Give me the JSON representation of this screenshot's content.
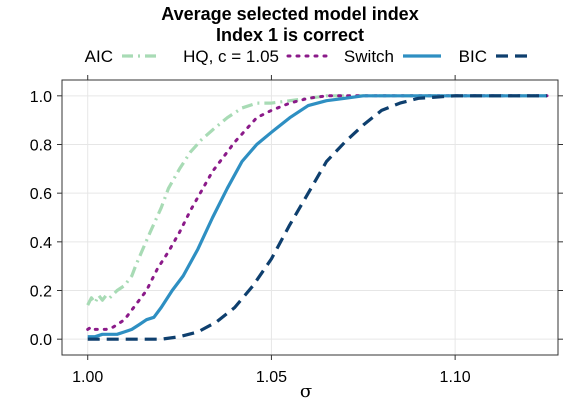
{
  "chart_data": {
    "type": "line",
    "title": "Average selected model index",
    "subtitle": "Index 1 is correct",
    "xlabel": "σ",
    "ylabel": "",
    "xlim": [
      0.993,
      1.128
    ],
    "ylim": [
      -0.065,
      1.065
    ],
    "xticks": [
      1.0,
      1.05,
      1.1
    ],
    "xtick_labels": [
      "1.00",
      "1.05",
      "1.10"
    ],
    "yticks": [
      0.0,
      0.2,
      0.4,
      0.6,
      0.8,
      1.0
    ],
    "ytick_labels": [
      "0.0",
      "0.2",
      "0.4",
      "0.6",
      "0.8",
      "1.0"
    ],
    "grid": true,
    "legend_position": "top",
    "series": [
      {
        "name": "AIC",
        "color": "#a8dbb5",
        "dash": "dashdot",
        "x": [
          1.0,
          1.001,
          1.002,
          1.003,
          1.004,
          1.005,
          1.006,
          1.008,
          1.01,
          1.012,
          1.013,
          1.015,
          1.017,
          1.02,
          1.022,
          1.025,
          1.028,
          1.031,
          1.034,
          1.038,
          1.042,
          1.046,
          1.05,
          1.055,
          1.06,
          1.065,
          1.07,
          1.08,
          1.09,
          1.1,
          1.11,
          1.125
        ],
        "y": [
          0.14,
          0.17,
          0.15,
          0.18,
          0.16,
          0.18,
          0.17,
          0.2,
          0.22,
          0.26,
          0.3,
          0.37,
          0.44,
          0.54,
          0.62,
          0.7,
          0.77,
          0.82,
          0.86,
          0.91,
          0.95,
          0.97,
          0.97,
          0.98,
          0.99,
          1.0,
          1.0,
          1.0,
          1.0,
          1.0,
          1.0,
          1.0
        ]
      },
      {
        "name": "HQ, c = 1.05",
        "color": "#8b1a89",
        "dash": "dotted",
        "x": [
          1.0,
          1.001,
          1.002,
          1.003,
          1.005,
          1.007,
          1.01,
          1.013,
          1.016,
          1.019,
          1.022,
          1.025,
          1.028,
          1.031,
          1.034,
          1.037,
          1.04,
          1.043,
          1.046,
          1.05,
          1.055,
          1.06,
          1.065,
          1.07,
          1.08,
          1.09,
          1.1,
          1.11,
          1.125
        ],
        "y": [
          0.04,
          0.05,
          0.04,
          0.04,
          0.04,
          0.05,
          0.08,
          0.14,
          0.2,
          0.29,
          0.36,
          0.44,
          0.53,
          0.61,
          0.69,
          0.75,
          0.81,
          0.86,
          0.91,
          0.94,
          0.97,
          0.99,
          1.0,
          1.0,
          1.0,
          1.0,
          1.0,
          1.0,
          1.0
        ]
      },
      {
        "name": "Switch",
        "color": "#2e8fc2",
        "dash": "solid",
        "x": [
          1.0,
          1.002,
          1.004,
          1.006,
          1.008,
          1.01,
          1.012,
          1.014,
          1.016,
          1.018,
          1.02,
          1.023,
          1.026,
          1.03,
          1.034,
          1.038,
          1.042,
          1.046,
          1.05,
          1.055,
          1.06,
          1.065,
          1.07,
          1.075,
          1.08,
          1.085,
          1.09,
          1.1,
          1.11,
          1.125
        ],
        "y": [
          0.01,
          0.01,
          0.02,
          0.02,
          0.02,
          0.03,
          0.04,
          0.06,
          0.08,
          0.09,
          0.13,
          0.2,
          0.26,
          0.37,
          0.5,
          0.62,
          0.73,
          0.8,
          0.85,
          0.91,
          0.96,
          0.98,
          0.99,
          1.0,
          1.0,
          1.0,
          1.0,
          1.0,
          1.0,
          1.0
        ]
      },
      {
        "name": "BIC",
        "color": "#0e3f6e",
        "dash": "dashed",
        "x": [
          1.0,
          1.005,
          1.01,
          1.015,
          1.02,
          1.025,
          1.03,
          1.035,
          1.04,
          1.045,
          1.05,
          1.055,
          1.06,
          1.065,
          1.07,
          1.075,
          1.08,
          1.085,
          1.09,
          1.1,
          1.11,
          1.125
        ],
        "y": [
          0.0,
          0.0,
          0.0,
          0.0,
          0.0,
          0.01,
          0.03,
          0.07,
          0.13,
          0.22,
          0.33,
          0.47,
          0.6,
          0.73,
          0.81,
          0.88,
          0.94,
          0.97,
          0.99,
          1.0,
          1.0,
          1.0
        ]
      }
    ]
  }
}
